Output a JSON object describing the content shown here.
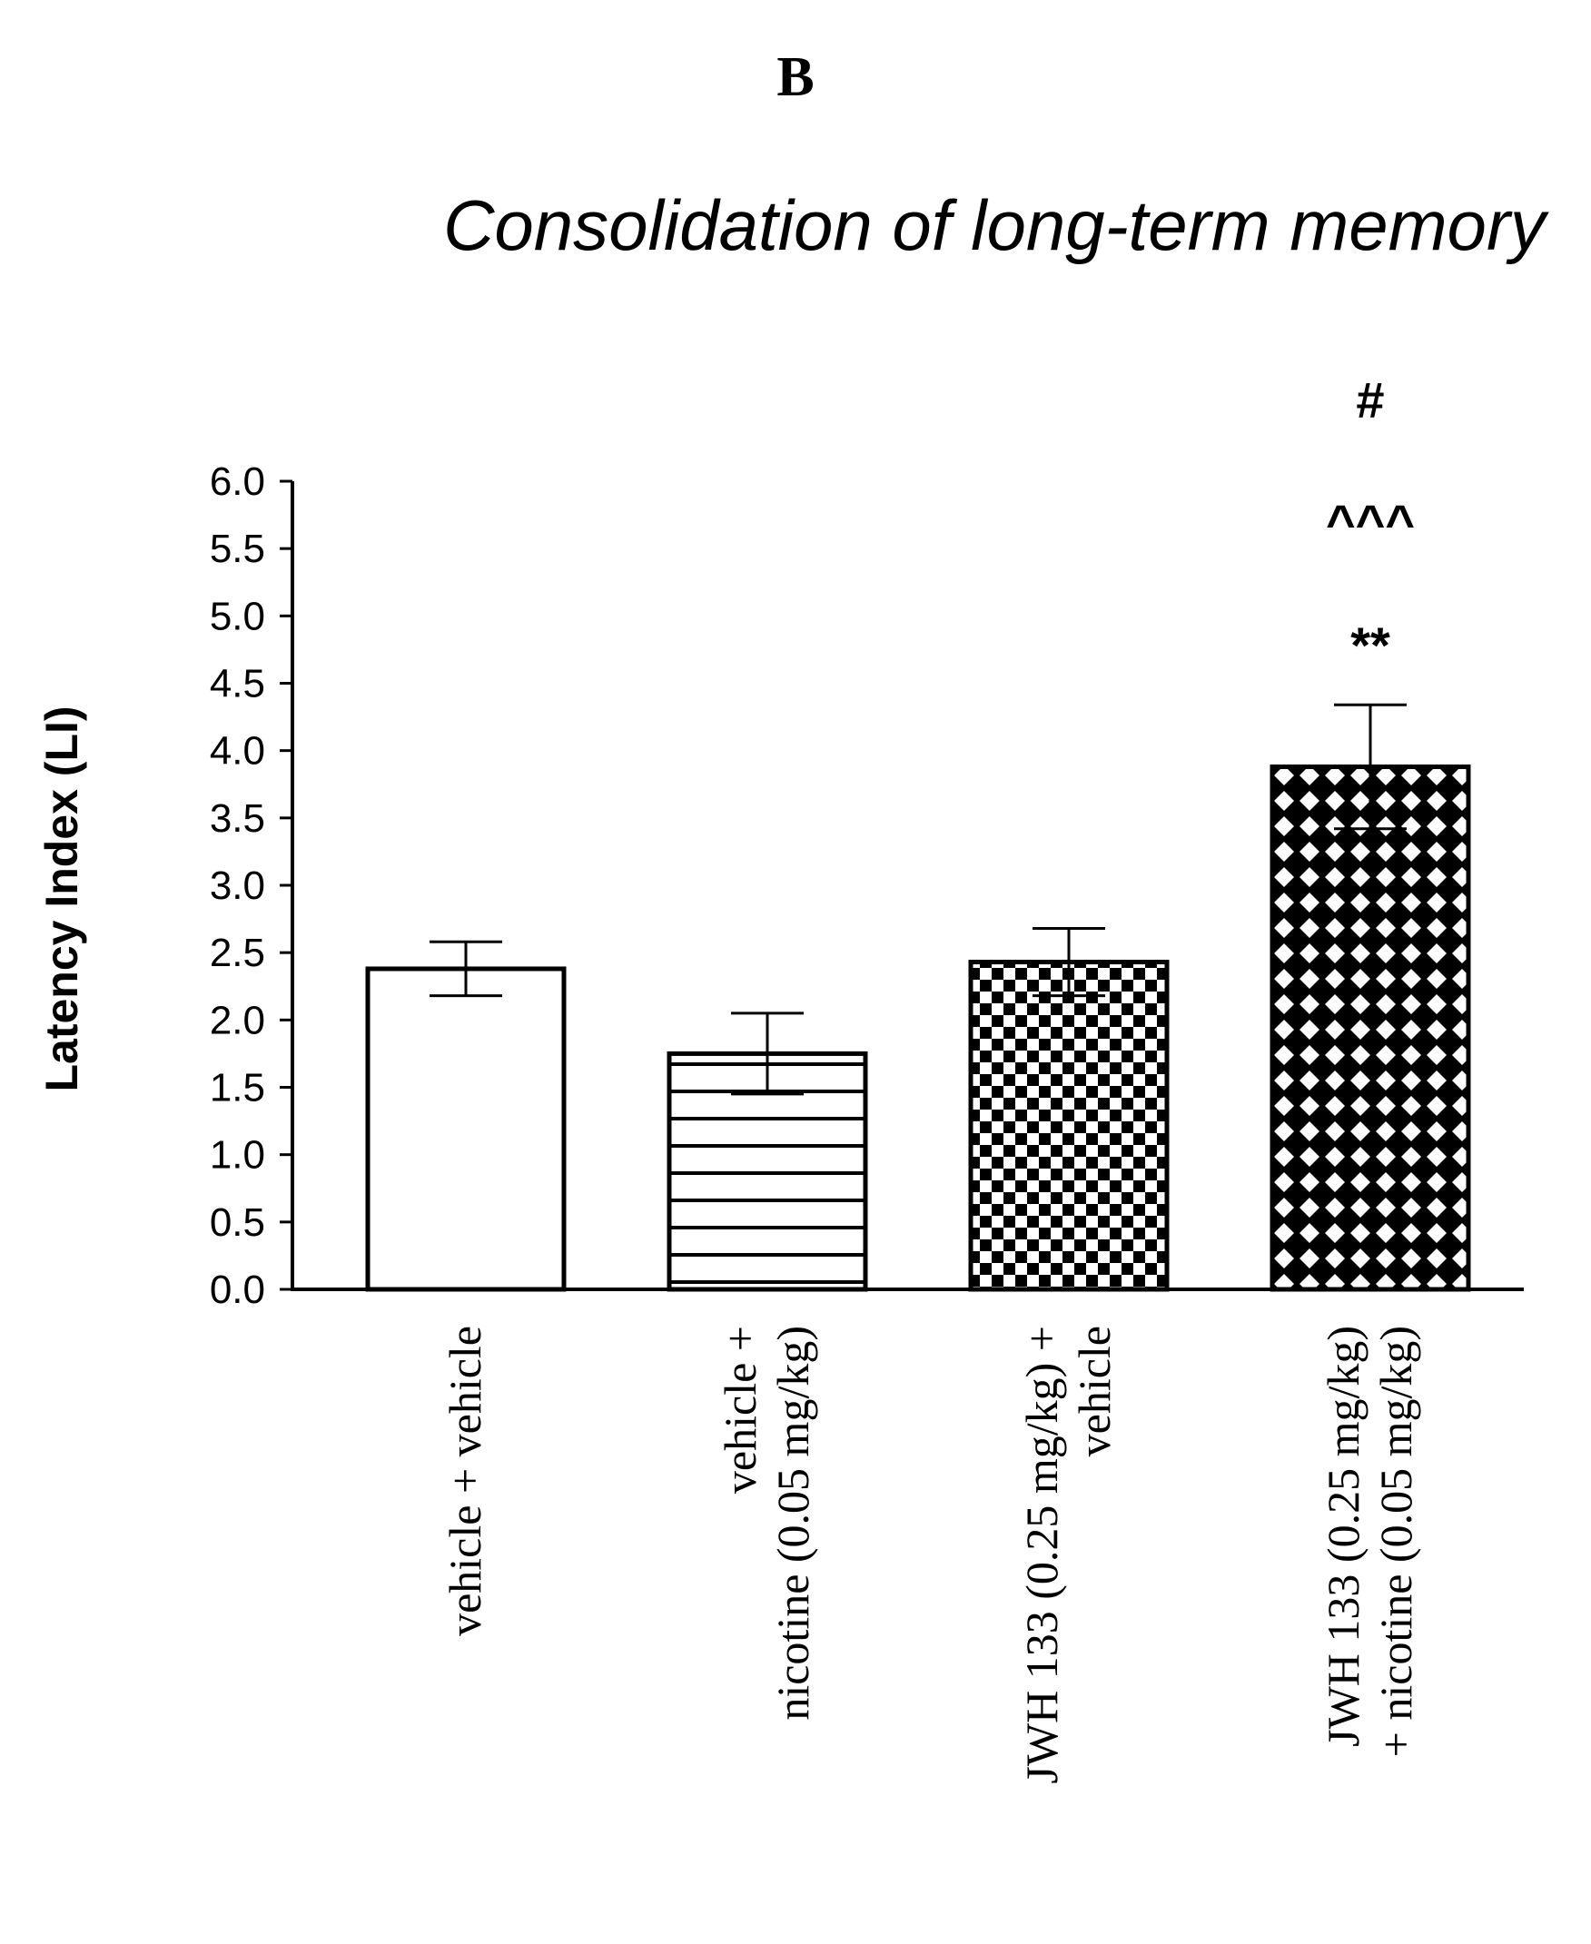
{
  "panel_letter": "B",
  "chart_data": {
    "type": "bar",
    "title": "Consolidation of long-term memory",
    "xlabel": "",
    "ylabel": "Latency Index (LI)",
    "ylim": [
      0,
      6
    ],
    "yticks": [
      "0.0",
      "0.5",
      "1.0",
      "1.5",
      "2.0",
      "2.5",
      "3.0",
      "3.5",
      "4.0",
      "4.5",
      "5.0",
      "5.5",
      "6.0"
    ],
    "grid": false,
    "legend": "none",
    "bars": [
      {
        "category_lines": [
          "vehicle + vehicle"
        ],
        "value": 2.38,
        "error": 0.2,
        "pattern": "none",
        "significance": []
      },
      {
        "category_lines": [
          "vehicle +",
          "nicotine (0.05 mg/kg)"
        ],
        "value": 1.75,
        "error": 0.3,
        "pattern": "horizontal-lines",
        "significance": []
      },
      {
        "category_lines": [
          "JWH 133 (0.25 mg/kg) +",
          "vehicle"
        ],
        "value": 2.43,
        "error": 0.25,
        "pattern": "checkerboard",
        "significance": []
      },
      {
        "category_lines": [
          "JWH 133 (0.25 mg/kg)",
          "+ nicotine (0.05 mg/kg)"
        ],
        "value": 3.88,
        "error": 0.46,
        "pattern": "diamond-lattice",
        "significance": [
          "#",
          "^^^",
          "**"
        ]
      }
    ]
  }
}
